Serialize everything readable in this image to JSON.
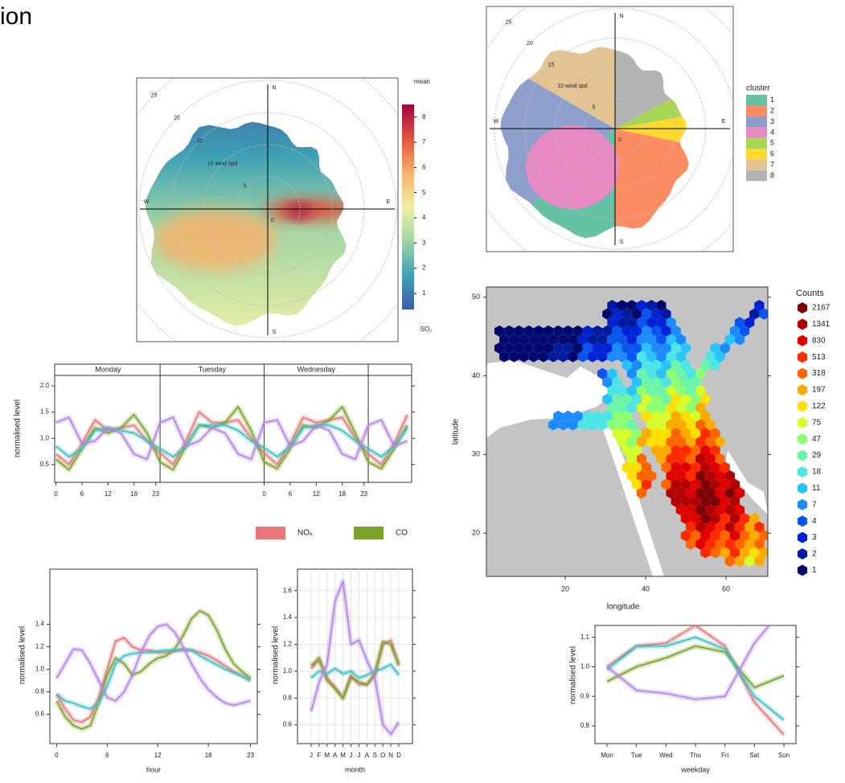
{
  "title": "ion",
  "chart_data": [
    {
      "type": "polar",
      "rticks": [
        0,
        5,
        {
          "value": 10,
          "label": "10 wind spd"
        },
        15,
        20,
        25
      ],
      "directions": [
        "N",
        "E",
        "S",
        "W"
      ],
      "colorbar": {
        "title": "mean",
        "label": "SO₂",
        "lim": [
          0.36,
          8.5
        ],
        "ticks": [
          1,
          2,
          3,
          4,
          5,
          6,
          7,
          8
        ],
        "colors": [
          "#3b5ca8",
          "#3fa2b5",
          "#9fd4a4",
          "#eef0a6",
          "#f6b26a",
          "#e2543e",
          "#9e0142"
        ]
      }
    },
    {
      "type": "polar-cluster",
      "rticks": [
        0,
        5,
        {
          "value": 10,
          "label": "10 wind spd"
        },
        15,
        20,
        25
      ],
      "directions": [
        "N",
        "E",
        "S",
        "W"
      ],
      "legend": {
        "title": "cluster",
        "categories": [
          "1",
          "2",
          "3",
          "4",
          "5",
          "6",
          "7",
          "8"
        ],
        "colors": [
          "#66c2a5",
          "#fc8d62",
          "#8da0cb",
          "#e78ac3",
          "#a6d854",
          "#ffd92f",
          "#e5c494",
          "#b3b3b3"
        ]
      }
    },
    {
      "type": "hexbin",
      "xlabel": "longitude",
      "ylabel": "latitude",
      "xlim": [
        0.4,
        70.4
      ],
      "ylim": [
        14.5,
        51.3
      ],
      "xticks": [
        20,
        40,
        60
      ],
      "yticks": [
        20,
        30,
        40,
        50
      ],
      "legend": {
        "title": "Counts",
        "values": [
          2167,
          1341,
          830,
          513,
          318,
          197,
          122,
          75,
          47,
          29,
          18,
          11,
          7,
          4,
          3,
          2,
          1
        ],
        "colors": [
          "#7f0000",
          "#b30000",
          "#e00000",
          "#ff2a00",
          "#ff6600",
          "#ffaa00",
          "#ffe000",
          "#d4ff2a",
          "#8cff73",
          "#6cf5a8",
          "#4ce6e6",
          "#29c4ff",
          "#1a8cff",
          "#0a55f0",
          "#0022d6",
          "#001aa0",
          "#000a6e"
        ]
      }
    },
    {
      "type": "line",
      "ylabel": "normalised level",
      "strips": [
        "Monday",
        "Tuesday",
        "Wednesday"
      ],
      "x": [
        0,
        3,
        6,
        9,
        12,
        15,
        18,
        21,
        24,
        27,
        30,
        33,
        36,
        39,
        42,
        45,
        48,
        51,
        54,
        57,
        60,
        63,
        66,
        69,
        72,
        75,
        78,
        81
      ],
      "xlim": [
        -0.3,
        82
      ],
      "xticks": [
        0,
        6,
        12,
        18,
        23,
        {
          "value": 48,
          "label": "0"
        },
        {
          "value": 54,
          "label": "6"
        },
        {
          "value": 60,
          "label": "12"
        },
        {
          "value": 66,
          "label": "18"
        },
        {
          "value": 71,
          "label": "23"
        }
      ],
      "ylim": [
        0.16,
        2.2
      ],
      "yticks": [
        0.5,
        {
          "value": 1,
          "label": "1.0"
        },
        1.5,
        {
          "value": 2,
          "label": "2.0"
        }
      ],
      "series": [
        {
          "name": "NOₓ",
          "color": "#e8767a",
          "values": [
            0.7,
            0.5,
            0.9,
            1.35,
            1.15,
            1.2,
            1.25,
            0.95,
            0.72,
            0.5,
            0.95,
            1.5,
            1.3,
            1.3,
            1.35,
            1.0,
            0.72,
            0.5,
            0.9,
            1.4,
            1.3,
            1.35,
            1.4,
            1.0,
            0.7,
            0.5,
            0.9,
            1.45
          ]
        },
        {
          "name": "CO",
          "color": "#7aa22a",
          "values": [
            0.6,
            0.4,
            0.8,
            1.2,
            1.1,
            1.2,
            1.45,
            1.1,
            0.55,
            0.4,
            0.85,
            1.25,
            1.2,
            1.3,
            1.6,
            1.15,
            0.55,
            0.42,
            0.8,
            1.25,
            1.2,
            1.35,
            1.6,
            1.1,
            0.55,
            0.42,
            0.8,
            1.25
          ]
        },
        {
          "color": "#3fbfc4",
          "values": [
            0.85,
            0.65,
            0.8,
            1.15,
            1.2,
            1.15,
            1.1,
            0.95,
            0.8,
            0.65,
            0.85,
            1.25,
            1.25,
            1.25,
            1.15,
            0.95,
            0.82,
            0.65,
            0.85,
            1.2,
            1.25,
            1.25,
            1.15,
            0.95,
            0.8,
            0.65,
            0.85,
            1.2
          ]
        },
        {
          "color": "#b583e6",
          "values": [
            1.3,
            1.4,
            0.9,
            0.95,
            1.2,
            1.1,
            0.7,
            0.6,
            1.3,
            1.4,
            0.85,
            0.95,
            1.2,
            1.1,
            0.7,
            0.6,
            1.3,
            1.35,
            0.85,
            0.95,
            1.25,
            1.15,
            0.7,
            0.6,
            1.25,
            1.35,
            0.85,
            0.95
          ]
        }
      ]
    },
    {
      "type": "line",
      "xlabel": "hour",
      "ylabel": "normalised level",
      "x": [
        0,
        1,
        2,
        3,
        4,
        5,
        6,
        7,
        8,
        9,
        10,
        11,
        12,
        13,
        14,
        15,
        16,
        17,
        18,
        19,
        20,
        21,
        22,
        23
      ],
      "xlim": [
        -0.8,
        23.8
      ],
      "xticks": [
        0,
        6,
        12,
        18,
        23
      ],
      "ylim": [
        0.34,
        1.89
      ],
      "yticks": [
        0.6,
        0.8,
        {
          "value": 1,
          "label": "1.0"
        },
        1.2,
        1.4
      ],
      "series": [
        {
          "color": "#e8767a",
          "values": [
            0.78,
            0.65,
            0.55,
            0.53,
            0.58,
            0.75,
            1.0,
            1.25,
            1.28,
            1.2,
            1.17,
            1.17,
            1.15,
            1.15,
            1.16,
            1.17,
            1.17,
            1.15,
            1.12,
            1.08,
            1.03,
            0.98,
            0.94,
            0.9
          ]
        },
        {
          "color": "#7aa22a",
          "values": [
            0.72,
            0.58,
            0.5,
            0.47,
            0.5,
            0.7,
            0.95,
            1.1,
            1.05,
            0.95,
            0.98,
            1.05,
            1.1,
            1.12,
            1.18,
            1.3,
            1.45,
            1.52,
            1.48,
            1.35,
            1.18,
            1.05,
            0.98,
            0.92
          ]
        },
        {
          "color": "#3fbfc4",
          "values": [
            0.78,
            0.72,
            0.7,
            0.67,
            0.65,
            0.7,
            0.85,
            1.05,
            1.12,
            1.14,
            1.15,
            1.15,
            1.16,
            1.17,
            1.17,
            1.18,
            1.17,
            1.12,
            1.08,
            1.04,
            1.0,
            0.97,
            0.94,
            0.9
          ]
        },
        {
          "color": "#b583e6",
          "values": [
            0.92,
            1.05,
            1.18,
            1.17,
            1.05,
            0.9,
            0.75,
            0.72,
            0.8,
            0.95,
            1.15,
            1.3,
            1.38,
            1.4,
            1.33,
            1.2,
            1.05,
            0.92,
            0.82,
            0.75,
            0.7,
            0.68,
            0.7,
            0.72
          ]
        }
      ]
    },
    {
      "type": "line",
      "xlabel": "month",
      "ylabel": "normalised level",
      "grid": true,
      "categories": [
        "J",
        "F",
        "M",
        "A",
        "M",
        "J",
        "J",
        "A",
        "S",
        "O",
        "N",
        "D"
      ],
      "ylim": [
        0.46,
        1.76
      ],
      "yticks": [
        0.6,
        0.8,
        {
          "value": 1,
          "label": "1.0"
        },
        1.2,
        1.4,
        1.6
      ],
      "series": [
        {
          "color": "#e8767a",
          "values": [
            1.02,
            1.08,
            0.95,
            0.88,
            0.8,
            0.97,
            0.9,
            0.9,
            0.97,
            1.2,
            1.23,
            1.04
          ]
        },
        {
          "color": "#7aa22a",
          "values": [
            1.04,
            1.1,
            0.93,
            0.87,
            0.8,
            0.95,
            0.92,
            0.9,
            0.98,
            1.22,
            1.2,
            1.05
          ]
        },
        {
          "color": "#3fbfc4",
          "values": [
            0.95,
            1.0,
            0.98,
            1.02,
            0.98,
            1.0,
            0.95,
            0.97,
            1.0,
            1.02,
            1.05,
            0.97
          ]
        },
        {
          "color": "#b583e6",
          "values": [
            0.7,
            0.92,
            1.05,
            1.52,
            1.67,
            1.2,
            1.23,
            1.08,
            0.95,
            0.6,
            0.53,
            0.62
          ]
        }
      ]
    },
    {
      "type": "line",
      "xlabel": "weekday",
      "ylabel": "normalised level",
      "categories": [
        "Mon",
        "Tue",
        "Wed",
        "Thu",
        "Fri",
        "Sat",
        "Sun"
      ],
      "ylim": [
        0.74,
        1.14
      ],
      "yticks": [
        0.8,
        0.9,
        {
          "value": 1,
          "label": "1.0"
        },
        1.1
      ],
      "series": [
        {
          "color": "#e8767a",
          "values": [
            1.0,
            1.07,
            1.08,
            1.14,
            1.07,
            0.88,
            0.77
          ]
        },
        {
          "color": "#7aa22a",
          "values": [
            0.95,
            1.0,
            1.03,
            1.07,
            1.05,
            0.93,
            0.97
          ]
        },
        {
          "color": "#3fbfc4",
          "values": [
            0.99,
            1.07,
            1.07,
            1.1,
            1.06,
            0.9,
            0.82
          ]
        },
        {
          "color": "#b583e6",
          "values": [
            1.0,
            0.92,
            0.91,
            0.89,
            0.9,
            1.08,
            1.2
          ]
        }
      ]
    }
  ]
}
